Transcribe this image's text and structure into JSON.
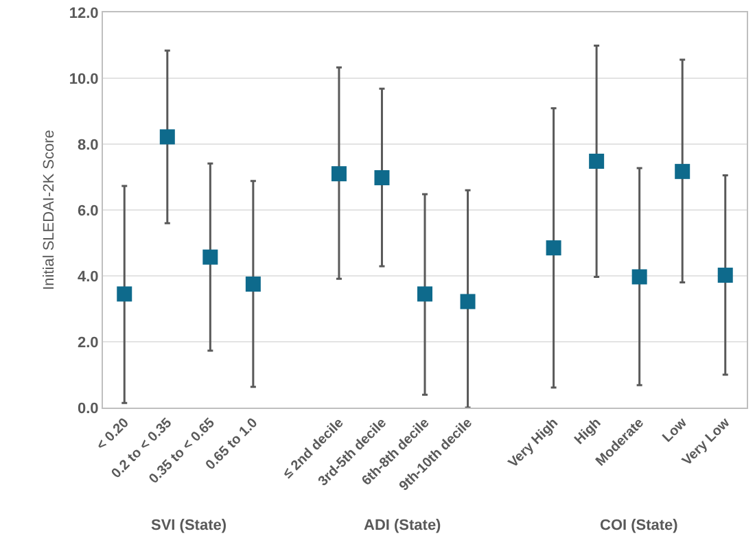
{
  "chart_data": {
    "type": "scatter",
    "ylabel": "Initial SLEDAI-2K Score",
    "categories": [
      "< 0.20",
      "0.2 to < 0.35",
      "0.35 to < 0.65",
      "0.65 to 1.0",
      null,
      "≤ 2nd decile",
      "3rd-5th decile",
      "6th-8th decile",
      "9th-10th decile",
      null,
      "Very High",
      "High",
      "Moderate",
      "Low",
      "Very Low"
    ],
    "series": [
      {
        "color": "#0e6a8c",
        "values": [
          3.45,
          8.22,
          4.57,
          3.75,
          null,
          7.1,
          6.98,
          3.45,
          3.22,
          null,
          4.85,
          7.48,
          3.97,
          7.17,
          4.02
        ],
        "errors": [
          [
            0.14,
            6.73
          ],
          [
            5.6,
            10.84
          ],
          [
            1.73,
            7.41
          ],
          [
            0.63,
            6.88
          ],
          null,
          [
            3.91,
            10.33
          ],
          [
            4.29,
            9.68
          ],
          [
            0.39,
            6.48
          ],
          [
            0,
            6.6
          ],
          null,
          [
            0.61,
            9.09
          ],
          [
            3.97,
            10.99
          ],
          [
            0.68,
            7.27
          ],
          [
            3.8,
            10.56
          ],
          [
            1.0,
            7.05
          ]
        ]
      }
    ],
    "ylim": [
      0,
      12
    ],
    "yticks": [
      {
        "value": 0,
        "label": "0.0"
      },
      {
        "value": 2,
        "label": "2.0"
      },
      {
        "value": 4,
        "label": "4.0"
      },
      {
        "value": 6,
        "label": "6.0"
      },
      {
        "value": 8,
        "label": "8.0"
      },
      {
        "value": 10,
        "label": "10.0"
      },
      {
        "value": 12,
        "label": "12.0"
      }
    ],
    "grid": "y",
    "marker": "square",
    "annotations": [
      "SVI (State)",
      "ADI (State)",
      "COI (State)"
    ]
  }
}
